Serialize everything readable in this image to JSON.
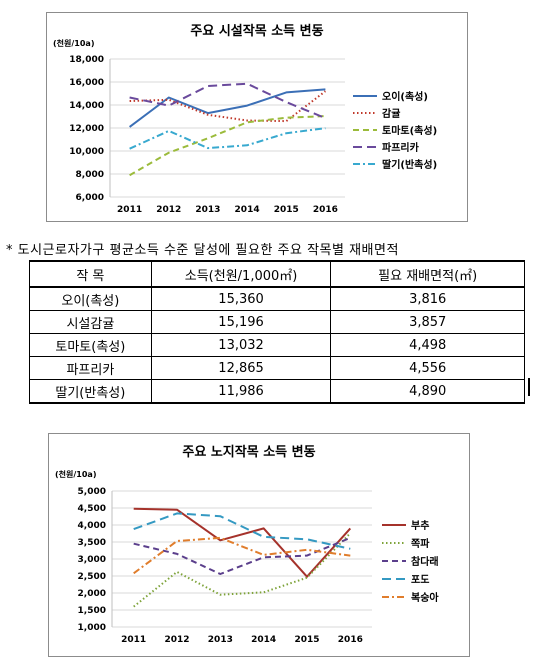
{
  "chart_data": [
    {
      "type": "line",
      "title": "주요 시설작목 소득 변동",
      "unit": "(천원/10a)",
      "x": [
        "2011",
        "2012",
        "2013",
        "2014",
        "2015",
        "2016"
      ],
      "ylim": [
        6000,
        18000
      ],
      "yticks": [
        "6,000",
        "8,000",
        "10,000",
        "12,000",
        "14,000",
        "16,000",
        "18,000"
      ],
      "legend_position": "right",
      "series": [
        {
          "name": "오이(촉성)",
          "values": [
            12100,
            14650,
            13300,
            13950,
            15100,
            15360
          ],
          "color": "#3b6fb6",
          "dash": "solid"
        },
        {
          "name": "감귤",
          "values": [
            14350,
            14450,
            13150,
            12650,
            12600,
            15196
          ],
          "color": "#c0392b",
          "dash": "dot"
        },
        {
          "name": "토마토(촉성)",
          "values": [
            7900,
            9850,
            11100,
            12500,
            12900,
            13032
          ],
          "color": "#9bbb3b",
          "dash": "dash"
        },
        {
          "name": "파프리카",
          "values": [
            14650,
            13950,
            15650,
            15850,
            14250,
            12865
          ],
          "color": "#6a4a9c",
          "dash": "longdash"
        },
        {
          "name": "딸기(반촉성)",
          "values": [
            10200,
            11750,
            10250,
            10500,
            11550,
            11986
          ],
          "color": "#38a9cf",
          "dash": "dashdot"
        }
      ]
    },
    {
      "type": "line",
      "title": "주요 노지작목 소득 변동",
      "unit": "(천원/10a)",
      "x": [
        "2011",
        "2012",
        "2013",
        "2014",
        "2015",
        "2016"
      ],
      "ylim": [
        1000,
        5000
      ],
      "yticks": [
        "1,000",
        "1,500",
        "2,000",
        "2,500",
        "3,000",
        "3,500",
        "4,000",
        "4,500",
        "5,000"
      ],
      "legend_position": "right",
      "series": [
        {
          "name": "부추",
          "values": [
            4480,
            4450,
            3550,
            3900,
            2480,
            3900
          ],
          "color": "#a5322b",
          "dash": "solid"
        },
        {
          "name": "쪽파",
          "values": [
            1600,
            2620,
            1950,
            2020,
            2450,
            3760
          ],
          "color": "#7ea33a",
          "dash": "dot"
        },
        {
          "name": "참다래",
          "values": [
            3450,
            3150,
            2560,
            3050,
            3100,
            3620
          ],
          "color": "#5b3f8c",
          "dash": "dash"
        },
        {
          "name": "포도",
          "values": [
            3880,
            4340,
            4260,
            3650,
            3580,
            3300
          ],
          "color": "#3499c2",
          "dash": "longdash"
        },
        {
          "name": "복숭아",
          "values": [
            2580,
            3530,
            3620,
            3120,
            3270,
            3100
          ],
          "color": "#e07d2c",
          "dash": "dashdot"
        }
      ]
    }
  ],
  "note": "* 도시근로자가구 평균소득 수준 달성에 필요한 주요 작목별 재배면적",
  "table": {
    "headers": [
      "작  목",
      "소득(천원/1,000㎡)",
      "필요 재배면적(㎡)"
    ],
    "rows": [
      [
        "오이(촉성)",
        "15,360",
        "3,816"
      ],
      [
        "시설감귤",
        "15,196",
        "3,857"
      ],
      [
        "토마토(촉성)",
        "13,032",
        "4,498"
      ],
      [
        "파프리카",
        "12,865",
        "4,556"
      ],
      [
        "딸기(반촉성)",
        "11,986",
        "4,890"
      ]
    ]
  }
}
